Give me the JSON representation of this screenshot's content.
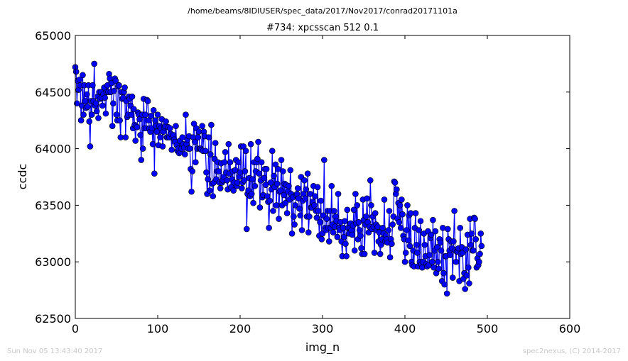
{
  "header": {
    "path": "/home/beams/8IDIUSER/spec_data/2017/Nov2017/conrad20171101a"
  },
  "footer": {
    "timestamp": "Sun Nov 05 13:43:40 2017",
    "credit": "spec2nexus, (C) 2014-2017"
  },
  "chart_data": {
    "type": "line",
    "title": "#734: xpcsscan 512 0.1",
    "xlabel": "img_n",
    "ylabel": "ccdc",
    "xlim": [
      0,
      600
    ],
    "ylim": [
      62500,
      65000
    ],
    "xticks": [
      "0",
      "100",
      "200",
      "300",
      "400",
      "500",
      "600"
    ],
    "yticks": [
      "62500",
      "63000",
      "63500",
      "64000",
      "64500",
      "65000"
    ],
    "grid": false,
    "line_color": "#0000ff",
    "marker": "circle",
    "x_start": 0,
    "x_step": 1,
    "series": [
      {
        "values": [
          64720,
          64680,
          64400,
          64600,
          64520,
          64610,
          64560,
          64250,
          64380,
          64650,
          64300,
          64560,
          64420,
          64360,
          64480,
          64370,
          64560,
          64240,
          64020,
          64420,
          64300,
          64560,
          64420,
          64750,
          64380,
          64400,
          64330,
          64460,
          64270,
          64500,
          64440,
          64500,
          64450,
          64380,
          64480,
          64540,
          64450,
          64310,
          64500,
          64560,
          64500,
          64660,
          64620,
          64500,
          64580,
          64200,
          64400,
          64510,
          64620,
          64600,
          64300,
          64250,
          64550,
          64560,
          64250,
          64100,
          64500,
          64440,
          64450,
          64500,
          64540,
          64100,
          64420,
          64280,
          64300,
          64460,
          64440,
          64380,
          64300,
          64460,
          64180,
          64350,
          64210,
          64070,
          64200,
          64190,
          64320,
          64300,
          64260,
          64120,
          63900,
          64300,
          64000,
          64440,
          64180,
          64300,
          64180,
          64430,
          64420,
          64250,
          64180,
          64150,
          64290,
          64180,
          64040,
          64340,
          63780,
          64250,
          64200,
          64150,
          64300,
          64030,
          64200,
          64100,
          64180,
          64260,
          64020,
          64150,
          64190,
          64200,
          64240,
          64100,
          64100,
          64190,
          64100,
          64180,
          64130,
          63990,
          64100,
          64120,
          64080,
          64060,
          64200,
          64030,
          63980,
          64000,
          63960,
          64070,
          63970,
          64000,
          64100,
          64040,
          64010,
          63950,
          64300,
          64040,
          64080,
          64000,
          64110,
          64000,
          63820,
          63620,
          63800,
          64100,
          64220,
          64060,
          63880,
          64180,
          64000,
          64100,
          64150,
          64000,
          64000,
          63990,
          64200,
          63980,
          64150,
          64110,
          63980,
          63790,
          63600,
          63730,
          64100,
          63630,
          63950,
          64210,
          63690,
          63580,
          63700,
          63910,
          64050,
          63730,
          63800,
          63880,
          63800,
          63700,
          63650,
          63870,
          63700,
          63720,
          63750,
          63880,
          63970,
          63790,
          63720,
          63640,
          64040,
          63780,
          63880,
          63660,
          63730,
          63800,
          63630,
          63700,
          63810,
          63900,
          63670,
          63700,
          63880,
          63750,
          63790,
          64020,
          63650,
          63700,
          64020,
          63720,
          63800,
          63980,
          63290,
          63600,
          63630,
          63740,
          63580,
          64040,
          63600,
          63730,
          63520,
          63880,
          63670,
          63800,
          63880,
          63910,
          64060,
          63780,
          63480,
          63720,
          63880,
          63570,
          63590,
          63740,
          63820,
          63680,
          63820,
          63580,
          63530,
          63300,
          63540,
          63700,
          63640,
          63980,
          63450,
          63760,
          63660,
          63860,
          63500,
          63690,
          63820,
          63380,
          63620,
          63630,
          63900,
          63500,
          63800,
          63590,
          63690,
          63520,
          63680,
          63430,
          63620,
          63670,
          63550,
          63810,
          63600,
          63250,
          63570,
          63400,
          63330,
          63500,
          63590,
          63600,
          63650,
          63560,
          63470,
          63410,
          63750,
          63280,
          63540,
          63600,
          63720,
          63560,
          63640,
          63400,
          63780,
          63260,
          63400,
          63600,
          63480,
          63480,
          63530,
          63670,
          63500,
          63580,
          63450,
          63390,
          63660,
          63450,
          63230,
          63350,
          63540,
          63200,
          63250,
          63410,
          63900,
          63300,
          63280,
          63380,
          63450,
          63300,
          63180,
          63450,
          63300,
          63670,
          63330,
          63260,
          63450,
          63310,
          63400,
          63360,
          63220,
          63600,
          63300,
          63280,
          63350,
          63180,
          63050,
          63300,
          63220,
          63360,
          63160,
          63050,
          63460,
          63300,
          63250,
          63300,
          63340,
          63280,
          63240,
          63320,
          63460,
          63100,
          63600,
          63340,
          63500,
          63200,
          63350,
          63280,
          63230,
          63120,
          63070,
          63550,
          63370,
          63070,
          63330,
          63400,
          63560,
          63350,
          63260,
          63310,
          63720,
          63500,
          63290,
          63400,
          63310,
          63080,
          63430,
          63330,
          63280,
          63310,
          63180,
          63260,
          63070,
          63150,
          63200,
          63300,
          63250,
          63550,
          63180,
          63230,
          63200,
          63170,
          63280,
          63450,
          63040,
          63200,
          63160,
          63330,
          63400,
          63710,
          63700,
          63600,
          63640,
          63380,
          63520,
          63350,
          63500,
          63300,
          63550,
          63420,
          63230,
          63200,
          63000,
          63080,
          63280,
          63500,
          63190,
          63410,
          63140,
          63430,
          63000,
          62970,
          63100,
          62960,
          63300,
          63430,
          63150,
          63080,
          62960,
          63280,
          63000,
          63360,
          62980,
          62950,
          63000,
          63250,
          63150,
          63050,
          62980,
          62960,
          63270,
          62970,
          63060,
          63210,
          63240,
          63000,
          63370,
          62950,
          63100,
          63270,
          62900,
          63130,
          63000,
          62940,
          63200,
          63170,
          63100,
          62830,
          63300,
          62900,
          62800,
          63050,
          63050,
          62720,
          63290,
          63200,
          63100,
          63060,
          63180,
          63120,
          62860,
          63180,
          63450,
          63100,
          63000,
          63090,
          63090,
          63120,
          62830,
          63300,
          63070,
          63130,
          63080,
          62850,
          62900,
          62760,
          63110,
          62880,
          63240,
          62950,
          62810,
          63380,
          63150,
          63250,
          63100,
          63100,
          63390,
          63380,
          63200,
          62950,
          63030,
          62970,
          63000,
          63070,
          63250,
          63140
        ]
      }
    ]
  }
}
